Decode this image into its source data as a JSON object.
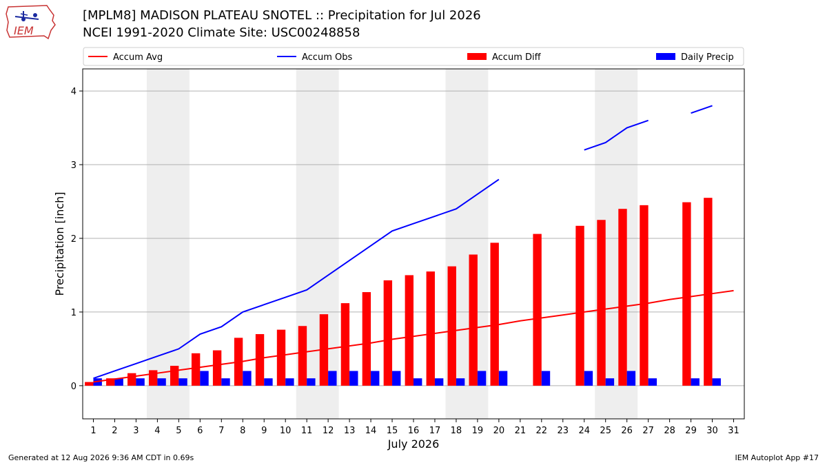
{
  "header": {
    "logo_text": "IEM",
    "title_line1": "[MPLM8] MADISON PLATEAU SNOTEL :: Precipitation for Jul 2026",
    "title_line2": "NCEI 1991-2020 Climate Site: USC00248858"
  },
  "footer": {
    "generated": "Generated at 12 Aug 2026 9:36 AM CDT in 0.69s",
    "app": "IEM Autoplot App #17"
  },
  "colors": {
    "avg": "#ff0000",
    "obs": "#0000ff",
    "diff": "#ff0000",
    "daily": "#0000ff",
    "weekend_shade": "#eeeeee",
    "grid": "#b0b0b0"
  },
  "chart_data": {
    "type": "bar",
    "xlabel": "July 2026",
    "ylabel": "Precipitation [inch]",
    "xlim": [
      0.5,
      31.5
    ],
    "ylim": [
      -0.45,
      4.3
    ],
    "yticks": [
      0,
      1,
      2,
      3,
      4
    ],
    "x": [
      1,
      2,
      3,
      4,
      5,
      6,
      7,
      8,
      9,
      10,
      11,
      12,
      13,
      14,
      15,
      16,
      17,
      18,
      19,
      20,
      21,
      22,
      23,
      24,
      25,
      26,
      27,
      28,
      29,
      30,
      31
    ],
    "grid": "horizontal",
    "legend_position": "top, above plot, single row",
    "weekend_spans": [
      [
        3.5,
        5.5
      ],
      [
        10.5,
        12.5
      ],
      [
        17.5,
        19.5
      ],
      [
        24.5,
        26.5
      ]
    ],
    "legend": [
      "Accum Avg",
      "Accum Obs",
      "Accum Diff",
      "Daily Precip"
    ],
    "series": [
      {
        "name": "Accum Avg",
        "kind": "line",
        "values": [
          0.05,
          0.09,
          0.13,
          0.17,
          0.21,
          0.25,
          0.29,
          0.33,
          0.38,
          0.42,
          0.46,
          0.5,
          0.54,
          0.58,
          0.63,
          0.67,
          0.71,
          0.75,
          0.79,
          0.83,
          0.88,
          0.92,
          0.96,
          1.0,
          1.04,
          1.08,
          1.12,
          1.17,
          1.21,
          1.25,
          1.29
        ]
      },
      {
        "name": "Accum Obs",
        "kind": "line",
        "values": [
          0.1,
          0.2,
          0.3,
          0.4,
          0.5,
          0.7,
          0.8,
          1.0,
          1.1,
          1.2,
          1.3,
          1.5,
          1.7,
          1.9,
          2.1,
          2.2,
          2.3,
          2.4,
          2.6,
          2.8,
          null,
          null,
          null,
          3.2,
          3.3,
          3.5,
          3.6,
          null,
          3.7,
          3.8,
          null
        ]
      },
      {
        "name": "Accum Diff",
        "kind": "bar",
        "values": [
          0.05,
          0.1,
          0.17,
          0.21,
          0.27,
          0.44,
          0.48,
          0.65,
          0.7,
          0.76,
          0.81,
          0.97,
          1.12,
          1.27,
          1.43,
          1.5,
          1.55,
          1.62,
          1.78,
          1.94,
          null,
          2.06,
          null,
          2.17,
          2.25,
          2.4,
          2.45,
          null,
          2.49,
          2.55,
          null
        ]
      },
      {
        "name": "Daily Precip",
        "kind": "bar",
        "values": [
          0.1,
          0.1,
          0.1,
          0.1,
          0.1,
          0.2,
          0.1,
          0.2,
          0.1,
          0.1,
          0.1,
          0.2,
          0.2,
          0.2,
          0.2,
          0.1,
          0.1,
          0.1,
          0.2,
          0.2,
          null,
          0.2,
          null,
          0.2,
          0.1,
          0.2,
          0.1,
          null,
          0.1,
          0.1,
          null
        ]
      }
    ]
  }
}
